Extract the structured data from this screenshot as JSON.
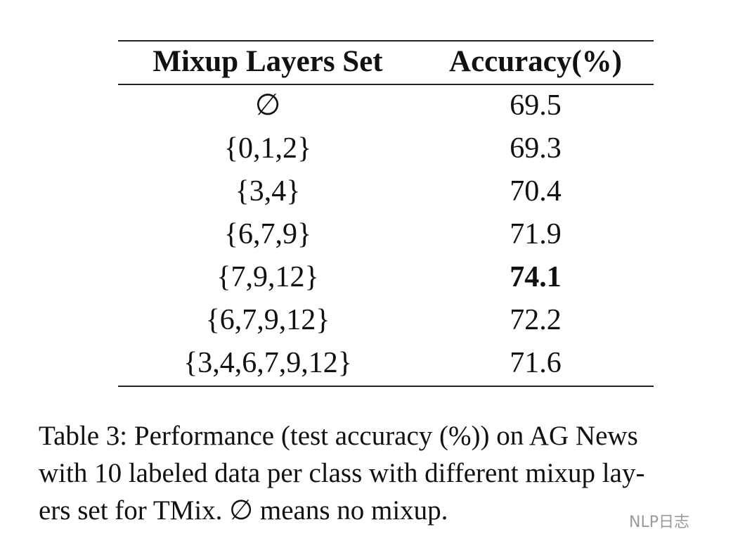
{
  "table": {
    "header": [
      "Mixup Layers Set",
      "Accuracy(%)"
    ],
    "rows": [
      {
        "set": "∅",
        "accuracy": 69.5,
        "bold": false
      },
      {
        "set": "{0,1,2}",
        "accuracy": 69.3,
        "bold": false
      },
      {
        "set": "{3,4}",
        "accuracy": 70.4,
        "bold": false
      },
      {
        "set": "{6,7,9}",
        "accuracy": 71.9,
        "bold": false
      },
      {
        "set": "{7,9,12}",
        "accuracy": 74.1,
        "bold": true
      },
      {
        "set": "{6,7,9,12}",
        "accuracy": 72.2,
        "bold": false
      },
      {
        "set": "{3,4,6,7,9,12}",
        "accuracy": 71.6,
        "bold": false
      }
    ]
  },
  "caption": [
    "Table 3: Performance (test accuracy (%)) on AG News",
    "with 10 labeled data per class with different mixup lay-",
    "ers set for TMix. ∅ means no mixup."
  ],
  "watermark": "NLP日志"
}
